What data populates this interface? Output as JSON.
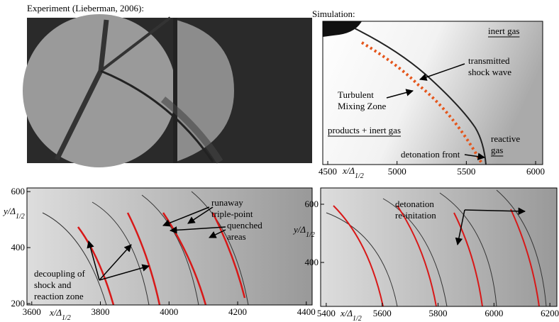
{
  "panels": [
    {
      "title": "Experiment (Lieberman, 2006):"
    },
    {
      "title": "Simulation:",
      "annotations": [
        {
          "lines": [
            "inert gas"
          ]
        },
        {
          "lines": [
            "transmitted",
            "shock wave"
          ]
        },
        {
          "lines": [
            "Turbulent",
            "Mixing Zone"
          ]
        },
        {
          "lines": [
            "products + inert gas"
          ]
        },
        {
          "lines": [
            "reactive",
            "gas"
          ]
        },
        {
          "lines": [
            "detonation front"
          ]
        }
      ],
      "xlabel": {
        "main": "x/Δ",
        "sub": "1/2"
      },
      "xlim": [
        4464,
        6051
      ],
      "xticks": [
        4500,
        5000,
        5500,
        6000
      ]
    },
    {
      "annotations": [
        {
          "lines": [
            "runaway",
            "triple-point"
          ]
        },
        {
          "lines": [
            "quenched",
            "areas"
          ]
        },
        {
          "lines": [
            "decoupling of",
            "shock and",
            "reaction zone"
          ]
        }
      ],
      "xlabel": {
        "main": "x/Δ",
        "sub": "1/2"
      },
      "ylabel": {
        "main": "y/Δ",
        "sub": "1/2"
      },
      "xlim": [
        3586,
        4417
      ],
      "xticks": [
        3600,
        3800,
        4000,
        4200,
        4400
      ],
      "ylim": [
        195,
        613
      ],
      "yticks": [
        200,
        400,
        600
      ]
    },
    {
      "annotations": [
        {
          "lines": [
            "detonation",
            "re-initation"
          ]
        }
      ],
      "xlabel": {
        "main": "x/Δ",
        "sub": "1/2"
      },
      "ylabel": {
        "main": "y/Δ",
        "sub": "1/2"
      },
      "xlim": [
        5380,
        6225
      ],
      "xticks": [
        5400,
        5600,
        5800,
        6000,
        6200
      ],
      "ylim": [
        249,
        656
      ],
      "yticks": [
        400,
        600
      ]
    }
  ]
}
